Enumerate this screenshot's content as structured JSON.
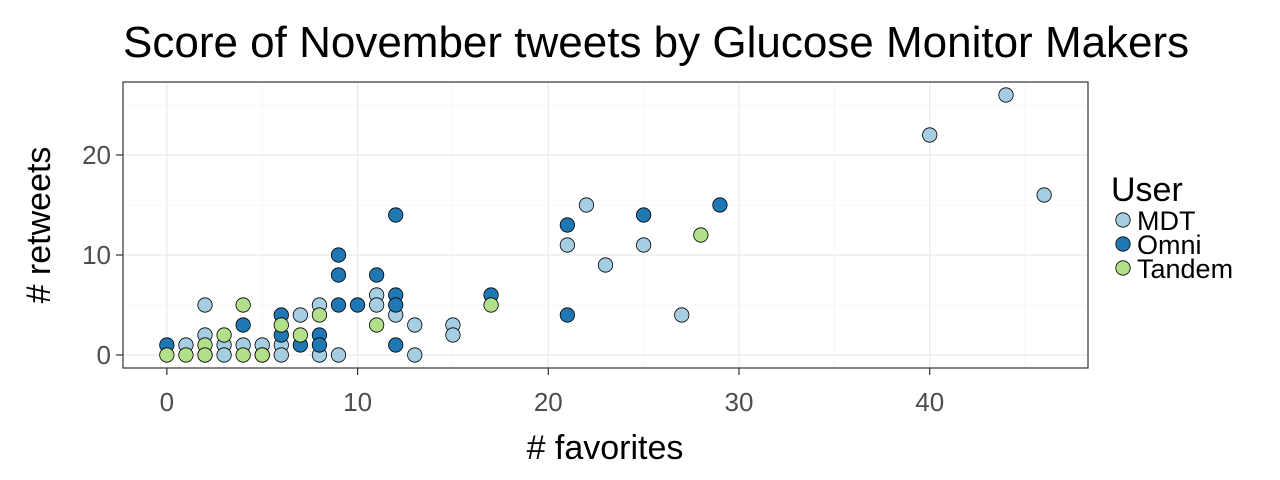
{
  "chart_data": {
    "type": "scatter",
    "title": "Score of November tweets by Glucose Monitor Makers",
    "xlabel": "# favorites",
    "ylabel": "# retweets",
    "xlim": [
      -2.3,
      48.3
    ],
    "ylim": [
      -1.3,
      27.3
    ],
    "x_ticks": [
      0,
      10,
      20,
      30,
      40
    ],
    "y_ticks": [
      0,
      10,
      20
    ],
    "grid": true,
    "legend": {
      "title": "User",
      "position": "right"
    },
    "series": [
      {
        "name": "MDT",
        "color": "#a6cee3",
        "points": [
          [
            1,
            1
          ],
          [
            2,
            5
          ],
          [
            2,
            2
          ],
          [
            2,
            0
          ],
          [
            3,
            1
          ],
          [
            3,
            0
          ],
          [
            4,
            1
          ],
          [
            5,
            1
          ],
          [
            5,
            0
          ],
          [
            6,
            1
          ],
          [
            6,
            0
          ],
          [
            7,
            4
          ],
          [
            8,
            5
          ],
          [
            8,
            0
          ],
          [
            9,
            0
          ],
          [
            11,
            6
          ],
          [
            11,
            5
          ],
          [
            12,
            4
          ],
          [
            13,
            3
          ],
          [
            13,
            0
          ],
          [
            15,
            3
          ],
          [
            15,
            2
          ],
          [
            21,
            11
          ],
          [
            22,
            15
          ],
          [
            23,
            9
          ],
          [
            25,
            11
          ],
          [
            27,
            4
          ],
          [
            40,
            22
          ],
          [
            44,
            26
          ],
          [
            46,
            16
          ]
        ]
      },
      {
        "name": "Omni",
        "color": "#1f78b4",
        "points": [
          [
            0,
            1
          ],
          [
            4,
            3
          ],
          [
            6,
            4
          ],
          [
            6,
            2
          ],
          [
            7,
            1
          ],
          [
            8,
            2
          ],
          [
            8,
            1
          ],
          [
            9,
            10
          ],
          [
            9,
            8
          ],
          [
            9,
            5
          ],
          [
            10,
            5
          ],
          [
            11,
            8
          ],
          [
            12,
            14
          ],
          [
            12,
            6
          ],
          [
            12,
            5
          ],
          [
            12,
            1
          ],
          [
            17,
            6
          ],
          [
            21,
            13
          ],
          [
            21,
            4
          ],
          [
            25,
            14
          ],
          [
            29,
            15
          ]
        ]
      },
      {
        "name": "Tandem",
        "color": "#b2df8a",
        "points": [
          [
            0,
            0
          ],
          [
            1,
            0
          ],
          [
            2,
            1
          ],
          [
            2,
            0
          ],
          [
            3,
            2
          ],
          [
            4,
            5
          ],
          [
            4,
            0
          ],
          [
            5,
            0
          ],
          [
            6,
            3
          ],
          [
            7,
            2
          ],
          [
            8,
            4
          ],
          [
            11,
            3
          ],
          [
            17,
            5
          ],
          [
            28,
            12
          ]
        ]
      }
    ]
  }
}
